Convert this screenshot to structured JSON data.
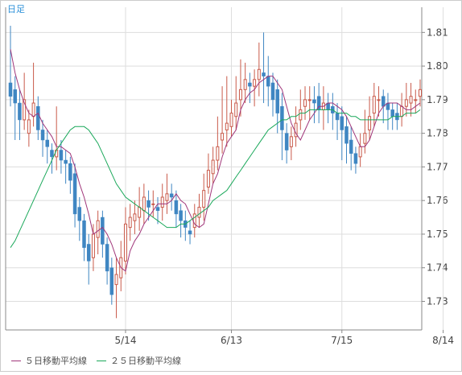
{
  "chart_data": {
    "type": "candlestick",
    "period_label": "日足",
    "x_tick_labels": [
      "5/14",
      "6/13",
      "7/15",
      "8/14"
    ],
    "y_tick_labels": [
      "1.73",
      "1.74",
      "1.75",
      "1.76",
      "1.77",
      "1.78",
      "1.79",
      "1.80",
      "1.81"
    ],
    "ylim": [
      1.7215,
      1.8175
    ],
    "grid": true,
    "legend_position": "bottom-left",
    "colors": {
      "up_candle": "#c95a4a",
      "down_candle": "#3f86c2",
      "ma5": "#a0367a",
      "ma25": "#1aa85a",
      "grid": "#dddddd",
      "axis": "#888888"
    },
    "x_ticks": [
      {
        "label": "5/14",
        "index": 25
      },
      {
        "label": "6/13",
        "index": 48
      },
      {
        "label": "7/15",
        "index": 72
      },
      {
        "label": "8/14",
        "index": 94
      }
    ],
    "series": [
      {
        "name": "５日移動平均線",
        "color": "#a0367a",
        "values": [
          1.805,
          1.798,
          1.793,
          1.789,
          1.786,
          1.785,
          1.786,
          1.783,
          1.781,
          1.779,
          1.776,
          1.776,
          1.775,
          1.774,
          1.77,
          1.765,
          1.761,
          1.756,
          1.75,
          1.751,
          1.752,
          1.75,
          1.747,
          1.743,
          1.74,
          1.739,
          1.745,
          1.748,
          1.75,
          1.753,
          1.755,
          1.757,
          1.759,
          1.759,
          1.759,
          1.76,
          1.762,
          1.76,
          1.759,
          1.756,
          1.753,
          1.752,
          1.753,
          1.759,
          1.765,
          1.768,
          1.773,
          1.777,
          1.779,
          1.781,
          1.787,
          1.79,
          1.792,
          1.793,
          1.795,
          1.796,
          1.797,
          1.797,
          1.795,
          1.793,
          1.788,
          1.783,
          1.78,
          1.778,
          1.781,
          1.784,
          1.786,
          1.788,
          1.788,
          1.789,
          1.789,
          1.788,
          1.787,
          1.785,
          1.782,
          1.779,
          1.776,
          1.776,
          1.778,
          1.782,
          1.786,
          1.788,
          1.789,
          1.789,
          1.789,
          1.788,
          1.787,
          1.787,
          1.788,
          1.789
        ]
      },
      {
        "name": "２５日移動平均線",
        "color": "#1aa85a",
        "values": [
          1.746,
          1.748,
          1.751,
          1.754,
          1.757,
          1.76,
          1.763,
          1.766,
          1.769,
          1.772,
          1.775,
          1.777,
          1.779,
          1.781,
          1.782,
          1.782,
          1.782,
          1.781,
          1.779,
          1.777,
          1.774,
          1.771,
          1.768,
          1.765,
          1.763,
          1.761,
          1.76,
          1.759,
          1.758,
          1.757,
          1.756,
          1.755,
          1.754,
          1.753,
          1.752,
          1.752,
          1.752,
          1.753,
          1.753,
          1.754,
          1.755,
          1.756,
          1.757,
          1.758,
          1.76,
          1.761,
          1.762,
          1.763,
          1.765,
          1.767,
          1.769,
          1.771,
          1.773,
          1.775,
          1.777,
          1.779,
          1.781,
          1.782,
          1.783,
          1.784,
          1.784,
          1.785,
          1.785,
          1.786,
          1.786,
          1.787,
          1.787,
          1.787,
          1.787,
          1.787,
          1.787,
          1.786,
          1.786,
          1.786,
          1.785,
          1.785,
          1.784,
          1.784,
          1.784,
          1.784,
          1.784,
          1.784,
          1.784,
          1.785,
          1.785,
          1.785,
          1.786,
          1.786,
          1.786,
          1.787
        ]
      }
    ],
    "candles": {
      "open": [
        1.795,
        1.793,
        1.789,
        1.784,
        1.78,
        1.785,
        1.788,
        1.781,
        1.778,
        1.775,
        1.773,
        1.775,
        1.772,
        1.771,
        1.768,
        1.758,
        1.754,
        1.747,
        1.743,
        1.749,
        1.755,
        1.747,
        1.74,
        1.735,
        1.737,
        1.742,
        1.752,
        1.754,
        1.755,
        1.757,
        1.76,
        1.759,
        1.758,
        1.758,
        1.76,
        1.762,
        1.76,
        1.757,
        1.754,
        1.751,
        1.752,
        1.755,
        1.758,
        1.764,
        1.768,
        1.772,
        1.778,
        1.781,
        1.782,
        1.785,
        1.79,
        1.793,
        1.795,
        1.794,
        1.796,
        1.798,
        1.797,
        1.795,
        1.793,
        1.788,
        1.78,
        1.776,
        1.779,
        1.784,
        1.788,
        1.79,
        1.79,
        1.791,
        1.787,
        1.789,
        1.788,
        1.786,
        1.785,
        1.782,
        1.778,
        1.774,
        1.773,
        1.777,
        1.781,
        1.786,
        1.79,
        1.791,
        1.789,
        1.787,
        1.786,
        1.785,
        1.788,
        1.789,
        1.79,
        1.791
      ],
      "close": [
        1.791,
        1.789,
        1.784,
        1.79,
        1.784,
        1.789,
        1.781,
        1.778,
        1.776,
        1.773,
        1.775,
        1.772,
        1.771,
        1.766,
        1.756,
        1.754,
        1.746,
        1.742,
        1.75,
        1.754,
        1.747,
        1.739,
        1.732,
        1.738,
        1.743,
        1.753,
        1.755,
        1.756,
        1.758,
        1.761,
        1.758,
        1.759,
        1.757,
        1.761,
        1.762,
        1.761,
        1.756,
        1.754,
        1.752,
        1.75,
        1.756,
        1.758,
        1.763,
        1.769,
        1.772,
        1.776,
        1.78,
        1.783,
        1.786,
        1.789,
        1.793,
        1.796,
        1.794,
        1.796,
        1.799,
        1.797,
        1.794,
        1.79,
        1.786,
        1.781,
        1.775,
        1.779,
        1.783,
        1.787,
        1.79,
        1.79,
        1.789,
        1.787,
        1.789,
        1.787,
        1.786,
        1.784,
        1.781,
        1.777,
        1.774,
        1.771,
        1.776,
        1.78,
        1.785,
        1.791,
        1.79,
        1.788,
        1.787,
        1.785,
        1.784,
        1.788,
        1.79,
        1.791,
        1.79,
        1.793
      ],
      "high": [
        1.812,
        1.797,
        1.793,
        1.798,
        1.787,
        1.801,
        1.791,
        1.784,
        1.781,
        1.777,
        1.788,
        1.778,
        1.775,
        1.773,
        1.771,
        1.761,
        1.756,
        1.75,
        1.753,
        1.757,
        1.757,
        1.749,
        1.743,
        1.743,
        1.748,
        1.758,
        1.759,
        1.76,
        1.764,
        1.765,
        1.763,
        1.763,
        1.761,
        1.765,
        1.768,
        1.765,
        1.763,
        1.759,
        1.757,
        1.754,
        1.759,
        1.762,
        1.768,
        1.774,
        1.776,
        1.785,
        1.794,
        1.797,
        1.79,
        1.797,
        1.802,
        1.801,
        1.798,
        1.799,
        1.807,
        1.81,
        1.803,
        1.798,
        1.796,
        1.792,
        1.783,
        1.782,
        1.788,
        1.793,
        1.794,
        1.794,
        1.794,
        1.795,
        1.794,
        1.792,
        1.792,
        1.789,
        1.788,
        1.785,
        1.782,
        1.776,
        1.78,
        1.787,
        1.791,
        1.795,
        1.794,
        1.793,
        1.792,
        1.789,
        1.789,
        1.792,
        1.795,
        1.795,
        1.793,
        1.796
      ],
      "low": [
        1.788,
        1.778,
        1.778,
        1.781,
        1.776,
        1.782,
        1.778,
        1.773,
        1.771,
        1.768,
        1.769,
        1.768,
        1.765,
        1.762,
        1.752,
        1.748,
        1.742,
        1.735,
        1.739,
        1.744,
        1.743,
        1.735,
        1.729,
        1.725,
        1.733,
        1.738,
        1.748,
        1.75,
        1.751,
        1.753,
        1.754,
        1.755,
        1.753,
        1.754,
        1.756,
        1.757,
        1.752,
        1.749,
        1.748,
        1.747,
        1.749,
        1.752,
        1.754,
        1.762,
        1.765,
        1.769,
        1.774,
        1.776,
        1.779,
        1.781,
        1.785,
        1.789,
        1.789,
        1.788,
        1.791,
        1.789,
        1.788,
        1.785,
        1.78,
        1.772,
        1.771,
        1.772,
        1.776,
        1.781,
        1.784,
        1.784,
        1.783,
        1.783,
        1.781,
        1.783,
        1.781,
        1.778,
        1.772,
        1.771,
        1.769,
        1.768,
        1.77,
        1.774,
        1.778,
        1.782,
        1.785,
        1.783,
        1.781,
        1.781,
        1.781,
        1.782,
        1.785,
        1.785,
        1.786,
        1.788
      ]
    }
  },
  "legend": {
    "ma5_label": "５日移動平均線",
    "ma25_label": "２５日移動平均線"
  }
}
